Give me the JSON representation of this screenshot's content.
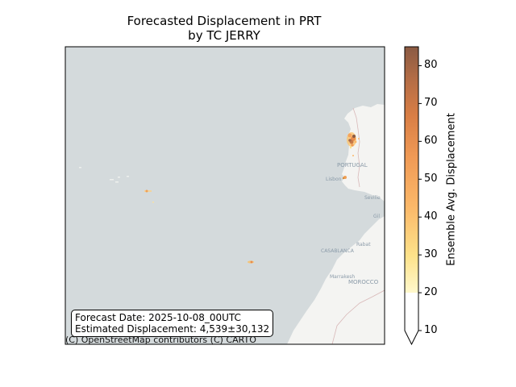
{
  "title_line1": "Forecasted Displacement in PRT",
  "title_line2": "by TC JERRY",
  "info": {
    "forecast_date": "Forecast Date: 2025-10-08_00UTC",
    "estimated": "Estimated Displacement: 4,539±30,132"
  },
  "attribution": "(C) OpenStreetMap contributors (C) CARTO",
  "colorbar": {
    "label": "Ensemble Avg. Displacement",
    "min": 10,
    "max": 85,
    "ticks": [
      10,
      20,
      30,
      40,
      50,
      60,
      70,
      80
    ],
    "tick_labels": [
      "10",
      "20",
      "30",
      "40",
      "50",
      "60",
      "70",
      "80"
    ],
    "colors": [
      "#fff8cc",
      "#fde28a",
      "#fbb869",
      "#f09a55",
      "#d97e45",
      "#b66e46",
      "#8a5a43"
    ]
  },
  "place_labels": {
    "portugal": "PORTUGAL",
    "lisbon": "Lisbon",
    "seville": "Seville",
    "gibraltar": "Gil",
    "rabat": "Rabat",
    "casablanca": "CASABLANCA",
    "marrakesh": "Marrakesh",
    "morocco": "MOROCCO"
  },
  "colors": {
    "ocean": "#d4dadc",
    "land": "#f4f4f2",
    "border": "#d8b8b8"
  }
}
